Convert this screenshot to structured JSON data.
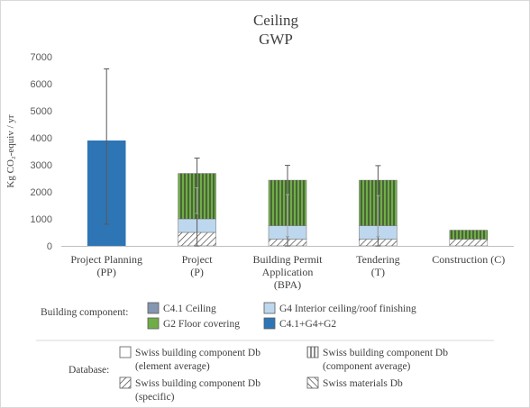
{
  "colors": {
    "text": "#404040",
    "tick": "#595959",
    "axis": "#bfbfbf",
    "frame": "#d9d9d9",
    "ceiling_gray": "#8496b0",
    "g4_lightblue": "#bdd7ee",
    "g2_green": "#70ad47",
    "combined_blue": "#2e75b6",
    "error_bar": "#7f7f7f"
  },
  "chart_data": {
    "type": "bar",
    "stacked": true,
    "title": "Ceiling",
    "subtitle": "GWP",
    "ylabel": "Kg CO₂-equiv / yr",
    "ylim": [
      0,
      7000
    ],
    "yticks": [
      0,
      1000,
      2000,
      3000,
      4000,
      5000,
      6000,
      7000
    ],
    "grid": false,
    "categories": [
      [
        "Project Planning",
        "(PP)"
      ],
      [
        "Project",
        "(P)"
      ],
      [
        "Building Permit",
        "Application",
        "(BPA)"
      ],
      [
        "Tendering",
        "(T)"
      ],
      [
        "Construction (C)"
      ]
    ],
    "series": [
      {
        "name": "C4.1 Ceiling",
        "pattern": "hatch-backslash",
        "values": [
          0,
          500,
          250,
          250,
          250
        ]
      },
      {
        "name": "G4 Interior ceiling/roof finishing",
        "pattern": "none",
        "values": [
          0,
          500,
          500,
          500,
          0
        ]
      },
      {
        "name": "G2 Floor covering",
        "pattern": "vertical",
        "values": [
          0,
          1680,
          1680,
          1680,
          330
        ]
      },
      {
        "name": "C4.1+G4+G2",
        "pattern": "none",
        "values": [
          3890,
          0,
          0,
          0,
          0
        ]
      }
    ],
    "error_bars": [
      {
        "category": 0,
        "low": 800,
        "high": 6550
      },
      {
        "category": 1,
        "low": 0,
        "high": 3250
      },
      {
        "category": 2,
        "low": 0,
        "high": 2980
      },
      {
        "category": 3,
        "low": 0,
        "high": 2970
      },
      {
        "category": 4,
        "low": null,
        "high": null
      }
    ],
    "inner_error_bars": [
      {
        "category": 1,
        "low": 1200,
        "high": 2150
      },
      {
        "category": 2,
        "low": 350,
        "high": 1900
      },
      {
        "category": 3,
        "low": 350,
        "high": 1860
      }
    ],
    "legend_component": {
      "title": "Building component:",
      "items": [
        {
          "label": "C4.1 Ceiling",
          "swatch": "ceiling_gray"
        },
        {
          "label": "G4 Interior ceiling/roof finishing",
          "swatch": "g4_lightblue"
        },
        {
          "label": "G2 Floor covering",
          "swatch": "g2_green"
        },
        {
          "label": "C4.1+G4+G2",
          "swatch": "combined_blue"
        }
      ]
    },
    "legend_database": {
      "title": "Database:",
      "items": [
        {
          "lines": [
            "Swiss building component Db",
            "(element average)"
          ],
          "pattern": "none"
        },
        {
          "lines": [
            "Swiss building component Db",
            "(component average)"
          ],
          "pattern": "vertical"
        },
        {
          "lines": [
            "Swiss building component Db",
            "(specific)"
          ],
          "pattern": "hatch-backslash"
        },
        {
          "lines": [
            "Swiss materials Db"
          ],
          "pattern": "hatch-slash"
        }
      ]
    }
  }
}
